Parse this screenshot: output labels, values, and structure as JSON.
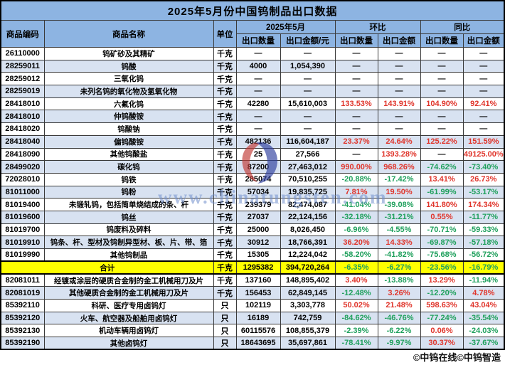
{
  "title": "2025年5月份中国钨制品出口数据",
  "header": {
    "code": "商品编码",
    "name": "商品名称",
    "unit": "单位",
    "group_month": "2025年5月",
    "group_mom": "环比",
    "group_yoy": "同比",
    "month_qty": "出口数量",
    "month_value": "出口金额/元",
    "mom_qty": "出口数量",
    "mom_value": "出口金额",
    "yoy_qty": "出口数量",
    "yoy_value": "出口金额"
  },
  "rows": [
    {
      "code": "26110000",
      "name": "钨矿砂及其精矿",
      "unit": "千克",
      "qty": "—",
      "value": "—",
      "mom_qty": "—",
      "mom_value": "—",
      "yoy_qty": "—",
      "yoy_value": "—"
    },
    {
      "code": "28259011",
      "name": "钨酸",
      "unit": "千克",
      "qty": "4000",
      "value": "1,054,390",
      "mom_qty": "—",
      "mom_value": "—",
      "yoy_qty": "—",
      "yoy_value": "—"
    },
    {
      "code": "28259012",
      "name": "三氧化钨",
      "unit": "千克",
      "qty": "—",
      "value": "—",
      "mom_qty": "—",
      "mom_value": "—",
      "yoy_qty": "—",
      "yoy_value": "—"
    },
    {
      "code": "28259019",
      "name": "未列名钨的氧化物及氢氧化物",
      "unit": "千克",
      "qty": "—",
      "value": "—",
      "mom_qty": "—",
      "mom_value": "—",
      "yoy_qty": "—",
      "yoy_value": "—"
    },
    {
      "code": "28418010",
      "name": "六氟化钨",
      "unit": "千克",
      "qty": "42280",
      "value": "15,610,003",
      "mom_qty": "133.53%",
      "mom_value": "143.91%",
      "yoy_qty": "104.90%",
      "yoy_value": "92.41%"
    },
    {
      "code": "28418010",
      "name": "仲钨酸铵",
      "unit": "千克",
      "qty": "—",
      "value": "—",
      "mom_qty": "—",
      "mom_value": "—",
      "yoy_qty": "—",
      "yoy_value": "—"
    },
    {
      "code": "28418020",
      "name": "钨酸钠",
      "unit": "千克",
      "qty": "—",
      "value": "—",
      "mom_qty": "—",
      "mom_value": "—",
      "yoy_qty": "—",
      "yoy_value": "—"
    },
    {
      "code": "28418040",
      "name": "偏钨酸铵",
      "unit": "千克",
      "qty": "482136",
      "value": "116,604,187",
      "mom_qty": "23.37%",
      "mom_value": "24.64%",
      "yoy_qty": "125.22%",
      "yoy_value": "151.59%"
    },
    {
      "code": "28418090",
      "name": "其他钨酸盐",
      "unit": "千克",
      "qty": "25",
      "value": "27,566",
      "mom_qty": "—",
      "mom_value": "1393.28%",
      "yoy_qty": "—",
      "yoy_value": "49125.00%"
    },
    {
      "code": "28499020",
      "name": "碳化钨",
      "unit": "千克",
      "qty": "87200",
      "value": "27,463,012",
      "mom_qty": "990.00%",
      "mom_value": "968.26%",
      "yoy_qty": "-74.62%",
      "yoy_value": "-73.40%"
    },
    {
      "code": "72028010",
      "name": "钨铁",
      "unit": "千克",
      "qty": "285074",
      "value": "70,510,255",
      "mom_qty": "-20.88%",
      "mom_value": "-17.42%",
      "yoy_qty": "13.41%",
      "yoy_value": "26.73%"
    },
    {
      "code": "81011000",
      "name": "钨粉",
      "unit": "千克",
      "qty": "57034",
      "value": "19,835,725",
      "mom_qty": "7.81%",
      "mom_value": "19.50%",
      "yoy_qty": "-61.99%",
      "yoy_value": "-53.17%"
    },
    {
      "code": "81019400",
      "name": "未锻轧钨，包括简单烧结成的条、杆",
      "unit": "千克",
      "qty": "239379",
      "value": "82,474,087",
      "mom_qty": "-41.04%",
      "mom_value": "-39.08%",
      "yoy_qty": "141.80%",
      "yoy_value": "174.34%"
    },
    {
      "code": "81019600",
      "name": "钨丝",
      "unit": "千克",
      "qty": "27037",
      "value": "22,124,156",
      "mom_qty": "-32.18%",
      "mom_value": "-31.21%",
      "yoy_qty": "0.55%",
      "yoy_value": "-11.77%"
    },
    {
      "code": "81019700",
      "name": "钨废料及碎料",
      "unit": "千克",
      "qty": "25000",
      "value": "8,026,450",
      "mom_qty": "-6.96%",
      "mom_value": "-4.55%",
      "yoy_qty": "-70.71%",
      "yoy_value": "-59.33%"
    },
    {
      "code": "81019910",
      "name": "钨条、杆、型材及钨制异型材、板、片、带、箔",
      "unit": "千克",
      "qty": "30912",
      "value": "18,766,391",
      "mom_qty": "36.20%",
      "mom_value": "14.33%",
      "yoy_qty": "-69.87%",
      "yoy_value": "-57.18%"
    },
    {
      "code": "81019990",
      "name": "其他钨制品",
      "unit": "千克",
      "qty": "15305",
      "value": "12,224,042",
      "mom_qty": "-58.20%",
      "mom_value": "-41.82%",
      "yoy_qty": "-75.68%",
      "yoy_value": "-56.72%"
    },
    {
      "total": true,
      "code": "",
      "name": "合计",
      "unit": "千克",
      "qty": "1295382",
      "value": "394,720,264",
      "mom_qty": "-6.35%",
      "mom_value": "-6.27%",
      "yoy_qty": "-23.56%",
      "yoy_value": "-16.79%"
    },
    {
      "code": "82081011",
      "name": "经镀或涂层的硬质合金制的金工机械用刀及片",
      "unit": "千克",
      "qty": "137160",
      "value": "148,895,402",
      "mom_qty": "3.40%",
      "mom_value": "-13.88%",
      "yoy_qty": "13.29%",
      "yoy_value": "-11.94%"
    },
    {
      "code": "82081019",
      "name": "其他硬质合金制的金工机械用刀及片",
      "unit": "千克",
      "qty": "156453",
      "value": "62,849,145",
      "mom_qty": "-12.48%",
      "mom_value": "3.26%",
      "yoy_qty": "-12.20%",
      "yoy_value": "4.78%"
    },
    {
      "code": "85392110",
      "name": "科研、医疗专用卤钨灯",
      "unit": "只",
      "qty": "102119",
      "value": "3,303,778",
      "mom_qty": "50.02%",
      "mom_value": "21.48%",
      "yoy_qty": "598.63%",
      "yoy_value": "43.04%"
    },
    {
      "code": "85392120",
      "name": "火车、航空器及船舶用卤钨灯",
      "unit": "只",
      "qty": "16189",
      "value": "742,759",
      "mom_qty": "-84.62%",
      "mom_value": "-46.76%",
      "yoy_qty": "-77.24%",
      "yoy_value": "-35.54%"
    },
    {
      "code": "85392130",
      "name": "机动车辆用卤钨灯",
      "unit": "只",
      "qty": "60115576",
      "value": "108,855,379",
      "mom_qty": "-2.39%",
      "mom_value": "-6.22%",
      "yoy_qty": "0.06%",
      "yoy_value": "-24.03%"
    },
    {
      "code": "85392190",
      "name": "其他卤钨灯",
      "unit": "只",
      "qty": "18643695",
      "value": "35,697,861",
      "mom_qty": "-78.41%",
      "mom_value": "-9.97%",
      "yoy_qty": "30.37%",
      "yoy_value": "-37.67%"
    }
  ],
  "footer": "©中钨在线©中钨智造",
  "watermark": {
    "text": "www.chinatungsten.com",
    "logo": "chinatungsten-logo"
  },
  "colors": {
    "header_blue": "#8db4e2",
    "row_alt_blue": "#d8e2f1",
    "total_yellow": "#ffff00",
    "positive_red": "#e0352b",
    "negative_green": "#1fa05c",
    "watermark_blue": "#708ecc"
  }
}
